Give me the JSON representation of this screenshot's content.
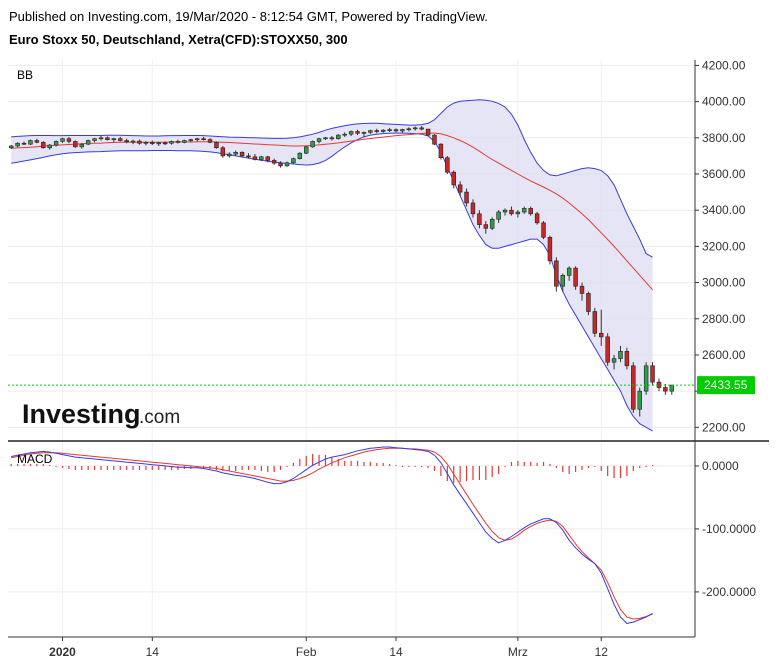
{
  "header": {
    "published": "Published on Investing.com, 19/Mar/2020 - 8:12:54 GMT, Powered by TradingView.",
    "instrument": "Euro Stoxx 50, Deutschland, Xetra(CFD):STOXX50, 300"
  },
  "logo": {
    "brand": "Investing",
    "suffix": ".com"
  },
  "colors": {
    "bullish": "#2e9e4b",
    "bearish": "#c62828",
    "band_line": "#3b3bdb",
    "band_fill": "#dcdcf2",
    "basis": "#e53935",
    "price_line": "#00cc00",
    "macd_line": "#3b3bdb",
    "signal_line": "#e53935",
    "histogram": "#e53935"
  },
  "chart_data": [
    {
      "type": "candlestick",
      "panel_label": "BB",
      "ylim": [
        2130,
        4230
      ],
      "yticks": [
        2200,
        2400,
        2600,
        2800,
        3000,
        3200,
        3400,
        3600,
        3800,
        4000,
        4200
      ],
      "ytick_labels": [
        "2200.00",
        "",
        "2600.00",
        "2800.00",
        "3000.00",
        "3200.00",
        "3400.00",
        "3600.00",
        "3800.00",
        "4000.00",
        "4200.00"
      ],
      "last_price": 2433.55,
      "last_price_label": "2433.55",
      "x_ticks": [
        {
          "index": 8,
          "label": "2020"
        },
        {
          "index": 22,
          "label": "14"
        },
        {
          "index": 46,
          "label": "Feb"
        },
        {
          "index": 60,
          "label": "14"
        },
        {
          "index": 79,
          "label": "Mrz"
        },
        {
          "index": 92,
          "label": "12"
        }
      ],
      "candles": [
        [
          3745,
          3760,
          3738,
          3755
        ],
        [
          3755,
          3775,
          3748,
          3770
        ],
        [
          3770,
          3780,
          3760,
          3765
        ],
        [
          3765,
          3790,
          3760,
          3785
        ],
        [
          3785,
          3795,
          3770,
          3775
        ],
        [
          3775,
          3782,
          3740,
          3745
        ],
        [
          3745,
          3765,
          3735,
          3760
        ],
        [
          3760,
          3785,
          3752,
          3780
        ],
        [
          3780,
          3800,
          3772,
          3795
        ],
        [
          3795,
          3805,
          3770,
          3780
        ],
        [
          3780,
          3785,
          3745,
          3750
        ],
        [
          3750,
          3770,
          3740,
          3765
        ],
        [
          3765,
          3790,
          3760,
          3785
        ],
        [
          3785,
          3800,
          3775,
          3795
        ],
        [
          3795,
          3810,
          3785,
          3800
        ],
        [
          3800,
          3808,
          3785,
          3790
        ],
        [
          3790,
          3800,
          3775,
          3795
        ],
        [
          3795,
          3805,
          3780,
          3785
        ],
        [
          3785,
          3795,
          3770,
          3778
        ],
        [
          3778,
          3790,
          3765,
          3782
        ],
        [
          3782,
          3790,
          3762,
          3770
        ],
        [
          3770,
          3782,
          3758,
          3775
        ],
        [
          3775,
          3785,
          3760,
          3768
        ],
        [
          3768,
          3778,
          3755,
          3772
        ],
        [
          3772,
          3780,
          3760,
          3770
        ],
        [
          3770,
          3785,
          3762,
          3780
        ],
        [
          3780,
          3790,
          3768,
          3775
        ],
        [
          3775,
          3790,
          3770,
          3785
        ],
        [
          3785,
          3795,
          3775,
          3790
        ],
        [
          3790,
          3800,
          3780,
          3795
        ],
        [
          3795,
          3805,
          3785,
          3790
        ],
        [
          3790,
          3798,
          3770,
          3775
        ],
        [
          3775,
          3780,
          3740,
          3745
        ],
        [
          3745,
          3755,
          3690,
          3700
        ],
        [
          3700,
          3720,
          3690,
          3710
        ],
        [
          3710,
          3730,
          3700,
          3720
        ],
        [
          3720,
          3725,
          3690,
          3700
        ],
        [
          3700,
          3715,
          3685,
          3695
        ],
        [
          3695,
          3710,
          3675,
          3680
        ],
        [
          3680,
          3700,
          3672,
          3695
        ],
        [
          3695,
          3700,
          3665,
          3675
        ],
        [
          3675,
          3685,
          3650,
          3660
        ],
        [
          3660,
          3670,
          3635,
          3645
        ],
        [
          3645,
          3668,
          3640,
          3662
        ],
        [
          3662,
          3690,
          3655,
          3685
        ],
        [
          3685,
          3720,
          3680,
          3715
        ],
        [
          3715,
          3755,
          3710,
          3750
        ],
        [
          3750,
          3785,
          3745,
          3780
        ],
        [
          3780,
          3800,
          3770,
          3795
        ],
        [
          3795,
          3805,
          3788,
          3800
        ],
        [
          3800,
          3810,
          3785,
          3795
        ],
        [
          3795,
          3820,
          3790,
          3815
        ],
        [
          3815,
          3830,
          3805,
          3820
        ],
        [
          3820,
          3840,
          3810,
          3835
        ],
        [
          3835,
          3845,
          3815,
          3825
        ],
        [
          3825,
          3835,
          3805,
          3830
        ],
        [
          3830,
          3845,
          3822,
          3840
        ],
        [
          3840,
          3850,
          3825,
          3835
        ],
        [
          3835,
          3848,
          3828,
          3842
        ],
        [
          3842,
          3855,
          3832,
          3845
        ],
        [
          3845,
          3852,
          3830,
          3838
        ],
        [
          3838,
          3850,
          3828,
          3846
        ],
        [
          3846,
          3858,
          3836,
          3850
        ],
        [
          3850,
          3862,
          3840,
          3855
        ],
        [
          3855,
          3865,
          3842,
          3848
        ],
        [
          3848,
          3850,
          3810,
          3815
        ],
        [
          3815,
          3820,
          3760,
          3765
        ],
        [
          3765,
          3770,
          3680,
          3690
        ],
        [
          3690,
          3700,
          3600,
          3610
        ],
        [
          3610,
          3620,
          3520,
          3540
        ],
        [
          3540,
          3560,
          3480,
          3500
        ],
        [
          3500,
          3520,
          3420,
          3440
        ],
        [
          3440,
          3460,
          3360,
          3380
        ],
        [
          3380,
          3400,
          3300,
          3320
        ],
        [
          3320,
          3340,
          3270,
          3300
        ],
        [
          3300,
          3360,
          3290,
          3350
        ],
        [
          3350,
          3400,
          3330,
          3390
        ],
        [
          3390,
          3410,
          3370,
          3400
        ],
        [
          3400,
          3420,
          3370,
          3380
        ],
        [
          3380,
          3400,
          3360,
          3390
        ],
        [
          3390,
          3420,
          3380,
          3410
        ],
        [
          3410,
          3420,
          3370,
          3380
        ],
        [
          3380,
          3390,
          3320,
          3330
        ],
        [
          3330,
          3340,
          3240,
          3250
        ],
        [
          3250,
          3260,
          3100,
          3120
        ],
        [
          3120,
          3140,
          2950,
          2980
        ],
        [
          2980,
          3050,
          2950,
          3040
        ],
        [
          3040,
          3090,
          3010,
          3080
        ],
        [
          3080,
          3090,
          2960,
          2980
        ],
        [
          2980,
          3000,
          2900,
          2940
        ],
        [
          2940,
          2950,
          2820,
          2840
        ],
        [
          2840,
          2860,
          2700,
          2720
        ],
        [
          2720,
          2850,
          2650,
          2700
        ],
        [
          2700,
          2720,
          2540,
          2560
        ],
        [
          2560,
          2600,
          2520,
          2580
        ],
        [
          2580,
          2650,
          2560,
          2620
        ],
        [
          2620,
          2640,
          2520,
          2540
        ],
        [
          2540,
          2560,
          2280,
          2300
        ],
        [
          2300,
          2420,
          2260,
          2400
        ],
        [
          2400,
          2560,
          2380,
          2540
        ],
        [
          2540,
          2560,
          2430,
          2450
        ],
        [
          2450,
          2470,
          2400,
          2420
        ],
        [
          2420,
          2440,
          2380,
          2400
        ],
        [
          2400,
          2430,
          2380,
          2433.55
        ]
      ],
      "bb_upper": [
        3805,
        3808,
        3810,
        3812,
        3813,
        3813,
        3813,
        3812,
        3812,
        3813,
        3813,
        3813,
        3813,
        3813,
        3813,
        3814,
        3814,
        3814,
        3813,
        3812,
        3811,
        3810,
        3810,
        3810,
        3811,
        3812,
        3812,
        3813,
        3813,
        3813,
        3812,
        3810,
        3808,
        3806,
        3804,
        3803,
        3802,
        3801,
        3800,
        3799,
        3798,
        3797,
        3797,
        3798,
        3800,
        3805,
        3812,
        3820,
        3830,
        3842,
        3852,
        3860,
        3867,
        3873,
        3877,
        3879,
        3880,
        3880,
        3878,
        3876,
        3874,
        3872,
        3870,
        3870,
        3873,
        3880,
        3900,
        3935,
        3970,
        3992,
        4002,
        4005,
        4008,
        4010,
        4008,
        4002,
        3990,
        3970,
        3930,
        3870,
        3790,
        3720,
        3660,
        3620,
        3595,
        3590,
        3600,
        3610,
        3620,
        3630,
        3635,
        3630,
        3620,
        3590,
        3540,
        3460,
        3380,
        3310,
        3240,
        3160,
        3140
      ],
      "bb_basis": [
        3742,
        3744,
        3746,
        3748,
        3751,
        3754,
        3757,
        3759,
        3761,
        3763,
        3765,
        3767,
        3769,
        3770,
        3771,
        3773,
        3774,
        3775,
        3776,
        3776,
        3776,
        3776,
        3776,
        3776,
        3776,
        3777,
        3777,
        3777,
        3777,
        3778,
        3778,
        3778,
        3777,
        3776,
        3774,
        3772,
        3770,
        3768,
        3766,
        3764,
        3762,
        3760,
        3758,
        3756,
        3755,
        3755,
        3756,
        3758,
        3761,
        3764,
        3768,
        3772,
        3777,
        3782,
        3787,
        3792,
        3796,
        3800,
        3804,
        3808,
        3812,
        3815,
        3818,
        3821,
        3824,
        3826,
        3826,
        3822,
        3812,
        3800,
        3785,
        3768,
        3748,
        3726,
        3702,
        3680,
        3660,
        3640,
        3620,
        3600,
        3580,
        3562,
        3545,
        3528,
        3510,
        3490,
        3466,
        3440,
        3410,
        3380,
        3348,
        3312,
        3275,
        3238,
        3200,
        3160,
        3120,
        3080,
        3040,
        3000,
        2960
      ],
      "bb_lower": [
        3659,
        3665,
        3672,
        3678,
        3685,
        3692,
        3700,
        3706,
        3712,
        3716,
        3718,
        3720,
        3722,
        3723,
        3724,
        3726,
        3727,
        3728,
        3728,
        3729,
        3729,
        3729,
        3730,
        3730,
        3730,
        3730,
        3729,
        3729,
        3728,
        3727,
        3725,
        3722,
        3718,
        3712,
        3706,
        3700,
        3694,
        3688,
        3682,
        3676,
        3671,
        3666,
        3662,
        3658,
        3655,
        3652,
        3650,
        3652,
        3660,
        3675,
        3698,
        3725,
        3750,
        3772,
        3790,
        3805,
        3815,
        3820,
        3823,
        3825,
        3826,
        3826,
        3825,
        3823,
        3820,
        3810,
        3780,
        3720,
        3640,
        3560,
        3480,
        3400,
        3320,
        3260,
        3210,
        3190,
        3190,
        3200,
        3210,
        3220,
        3230,
        3240,
        3240,
        3210,
        3150,
        3040,
        2950,
        2880,
        2820,
        2760,
        2700,
        2640,
        2580,
        2520,
        2460,
        2400,
        2320,
        2260,
        2220,
        2200,
        2180
      ]
    },
    {
      "type": "macd",
      "panel_label": "MACD",
      "ylim": [
        -270,
        38
      ],
      "yticks": [
        0,
        -100,
        -200
      ],
      "ytick_labels": [
        "0.0000",
        "-100.0000",
        "-200.0000"
      ],
      "macd": [
        15,
        17,
        19,
        21,
        22,
        23,
        22,
        20,
        18,
        16,
        14,
        13,
        12,
        11,
        10,
        9,
        8,
        7,
        6,
        5,
        4,
        3,
        2,
        1,
        0,
        -1,
        -2,
        -2,
        -3,
        -3,
        -4,
        -6,
        -8,
        -11,
        -13,
        -15,
        -16,
        -18,
        -20,
        -23,
        -26,
        -28,
        -28,
        -25,
        -20,
        -13,
        -6,
        1,
        6,
        11,
        14,
        16,
        18,
        21,
        24,
        26,
        28,
        29,
        30,
        30,
        29,
        28,
        27,
        26,
        25,
        23,
        17,
        5,
        -12,
        -30,
        -45,
        -60,
        -75,
        -90,
        -105,
        -115,
        -122,
        -118,
        -112,
        -105,
        -98,
        -92,
        -88,
        -84,
        -84,
        -90,
        -102,
        -118,
        -130,
        -140,
        -148,
        -155,
        -170,
        -195,
        -220,
        -240,
        -250,
        -248,
        -244,
        -240,
        -234
      ],
      "signal": [
        13,
        15,
        17,
        19,
        20,
        21,
        21,
        21,
        20,
        19,
        18,
        17,
        16,
        15,
        14,
        13,
        12,
        11,
        10,
        9,
        8,
        7,
        6,
        5,
        4,
        3,
        2,
        1,
        0,
        -1,
        -2,
        -3,
        -4,
        -6,
        -8,
        -10,
        -12,
        -14,
        -16,
        -18,
        -20,
        -22,
        -24,
        -24,
        -23,
        -20,
        -16,
        -11,
        -5,
        0,
        5,
        9,
        13,
        16,
        19,
        22,
        24,
        26,
        27,
        28,
        28,
        28,
        27,
        27,
        26,
        25,
        22,
        15,
        3,
        -13,
        -29,
        -45,
        -61,
        -76,
        -91,
        -104,
        -114,
        -118,
        -116,
        -110,
        -102,
        -96,
        -91,
        -88,
        -86,
        -88,
        -96,
        -110,
        -124,
        -136,
        -146,
        -155,
        -165,
        -185,
        -208,
        -228,
        -240,
        -243,
        -242,
        -239,
        -235
      ]
    }
  ]
}
